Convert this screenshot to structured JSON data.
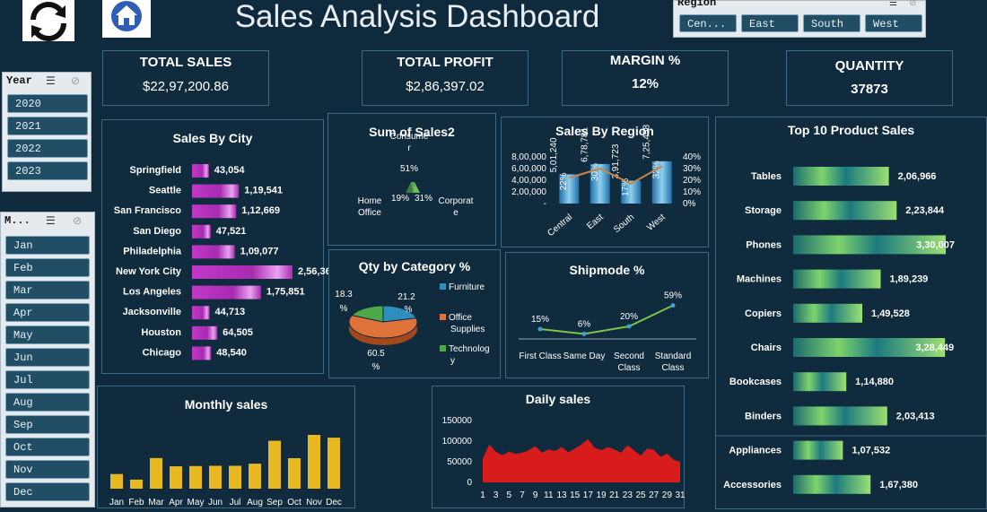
{
  "header": {
    "title": "Sales Analysis Dashboard"
  },
  "region_slicer": {
    "title": "Region",
    "items": [
      "Cen...",
      "East",
      "South",
      "West"
    ]
  },
  "year_slicer": {
    "title": "Year",
    "items": [
      "2020",
      "2021",
      "2022",
      "2023"
    ]
  },
  "month_slicer": {
    "title": "M...",
    "items": [
      "Jan",
      "Feb",
      "Mar",
      "Apr",
      "May",
      "Jun",
      "Jul",
      "Aug",
      "Sep",
      "Oct",
      "Nov",
      "Dec"
    ]
  },
  "kpis": [
    {
      "label": "TOTAL SALES",
      "value": "$22,97,200.86"
    },
    {
      "label": "TOTAL PROFIT",
      "value": "$2,86,397.02"
    },
    {
      "label": "MARGIN %",
      "value": "12%"
    },
    {
      "label": "QUANTITY",
      "value": "37873"
    }
  ],
  "colors": {
    "background": "#0e2a3c",
    "city_bar": "#b02fb6",
    "monthly_bar": "#e8b820",
    "daily_area": "#d81c1c",
    "ship_line": "#7fc34a"
  },
  "chart_data": [
    {
      "type": "bar",
      "title": "Sales By City",
      "orientation": "horizontal",
      "categories": [
        "Springfield",
        "Seattle",
        "San Francisco",
        "San Diego",
        "Philadelphia",
        "New York City",
        "Los Angeles",
        "Jacksonville",
        "Houston",
        "Chicago"
      ],
      "values": [
        43054,
        119541,
        112669,
        47521,
        109077,
        256368,
        175851,
        44713,
        64505,
        48540
      ],
      "labels": [
        "43,054",
        "1,19,541",
        "1,12,669",
        "47,521",
        "1,09,077",
        "2,56,368",
        "1,75,851",
        "44,713",
        "64,505",
        "48,540"
      ]
    },
    {
      "type": "pie",
      "title": "Sum of Sales2",
      "categories": [
        "Consumer",
        "Home Office",
        "Corporate"
      ],
      "values": [
        51,
        19,
        31
      ],
      "labels": [
        "51%",
        "19%",
        "31%"
      ]
    },
    {
      "type": "bar",
      "title": "Sales By Region",
      "categories": [
        "Central",
        "East",
        "South",
        "West"
      ],
      "values": [
        501240,
        678781,
        391723,
        725458
      ],
      "labels": [
        "5,01,240",
        "6,78,781",
        "3,91,723",
        "7,25,458"
      ],
      "margin_labels": [
        "22%",
        "30%",
        "17%",
        "32%"
      ],
      "yticks": [
        "8,00,000",
        "6,00,000",
        "4,00,000",
        "2,00,000",
        "-"
      ],
      "y2ticks": [
        "40%",
        "30%",
        "20%",
        "10%",
        "0%"
      ],
      "ylim": [
        0,
        800000
      ]
    },
    {
      "type": "pie",
      "title": "Qty by Category %",
      "categories": [
        "Furniture",
        "Office Supplies",
        "Technology"
      ],
      "values": [
        21.2,
        60.5,
        18.3
      ],
      "labels": [
        "21.2 %",
        "60.5 %",
        "18.3 %"
      ],
      "colors": [
        "#2e8fbf",
        "#e0733a",
        "#4fa84a"
      ]
    },
    {
      "type": "line",
      "title": "Shipmode %",
      "categories": [
        "First Class",
        "Same Day",
        "Second Class",
        "Standard Class"
      ],
      "values": [
        15,
        6,
        20,
        59
      ],
      "labels": [
        "15%",
        "6%",
        "20%",
        "59%"
      ]
    },
    {
      "type": "bar",
      "title": "Monthly sales",
      "categories": [
        "Jan",
        "Feb",
        "Mar",
        "Apr",
        "May",
        "Jun",
        "Jul",
        "Aug",
        "Sep",
        "Oct",
        "Nov",
        "Dec"
      ],
      "values": [
        110000,
        68000,
        230000,
        168000,
        170000,
        172000,
        172000,
        188000,
        360000,
        229000,
        404000,
        383000
      ]
    },
    {
      "type": "area",
      "title": "Daily sales",
      "yticks": [
        "150000",
        "100000",
        "50000",
        "0"
      ],
      "ylim": [
        0,
        150000
      ],
      "xticks": [
        "1",
        "3",
        "5",
        "7",
        "9",
        "11",
        "13",
        "15",
        "17",
        "19",
        "21",
        "23",
        "25",
        "27",
        "29",
        "31"
      ],
      "x": [
        1,
        2,
        3,
        4,
        5,
        6,
        7,
        8,
        9,
        10,
        11,
        12,
        13,
        14,
        15,
        16,
        17,
        18,
        19,
        20,
        21,
        22,
        23,
        24,
        25,
        26,
        27,
        28,
        29,
        30,
        31
      ],
      "values": [
        58000,
        92000,
        74000,
        66000,
        75000,
        69000,
        72000,
        78000,
        88000,
        72000,
        80000,
        76000,
        86000,
        73000,
        82000,
        92000,
        105000,
        84000,
        78000,
        86000,
        80000,
        72000,
        90000,
        78000,
        65000,
        82000,
        79000,
        62000,
        70000,
        55000,
        50000
      ]
    },
    {
      "type": "bar",
      "title": "Top 10 Product Sales",
      "orientation": "horizontal",
      "categories": [
        "Tables",
        "Storage",
        "Phones",
        "Machines",
        "Copiers",
        "Chairs",
        "Bookcases",
        "Binders",
        "Appliances",
        "Accessories"
      ],
      "values": [
        206966,
        223844,
        330007,
        189239,
        149528,
        328449,
        114880,
        203413,
        107532,
        167380
      ],
      "labels": [
        "2,06,966",
        "2,23,844",
        "3,30,007",
        "1,89,239",
        "1,49,528",
        "3,28,449",
        "1,14,880",
        "2,03,413",
        "1,07,532",
        "1,67,380"
      ]
    }
  ]
}
